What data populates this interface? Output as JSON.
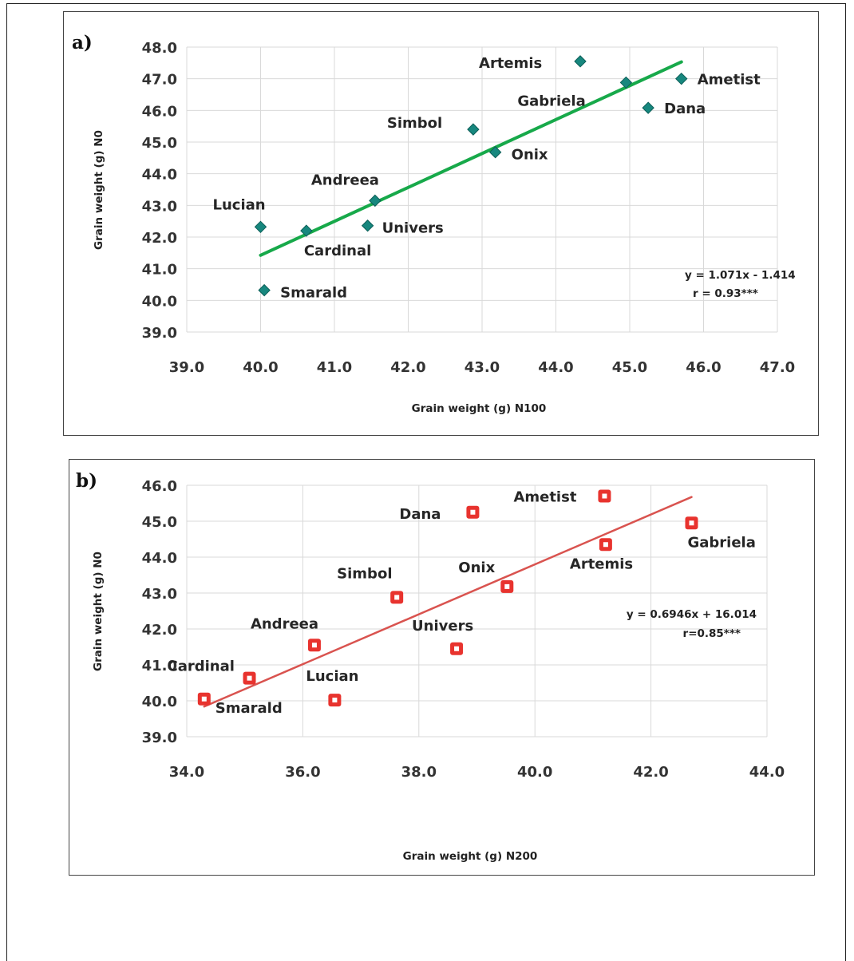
{
  "chart_data": [
    {
      "panel_label": "a)",
      "type": "scatter",
      "xlabel": "Grain weight (g) N100",
      "ylabel": "Grain weight (g) N0",
      "xlim": [
        39.0,
        47.0
      ],
      "ylim": [
        39.0,
        48.0
      ],
      "xticks": [
        "39.0",
        "40.0",
        "41.0",
        "42.0",
        "43.0",
        "44.0",
        "45.0",
        "46.0",
        "47.0"
      ],
      "yticks": [
        "39.0",
        "40.0",
        "41.0",
        "42.0",
        "43.0",
        "44.0",
        "45.0",
        "46.0",
        "47.0",
        "48.0"
      ],
      "grid": true,
      "marker": "diamond",
      "marker_color": "#17877e",
      "trend_color": "#17a94a",
      "trendline": {
        "x": [
          40.0,
          45.7
        ],
        "slope": 1.071,
        "intercept": -1.414
      },
      "equation": "y = 1.071x - 1.414",
      "r_text": "r = 0.93***",
      "points": [
        {
          "name": "Artemis",
          "x": 44.33,
          "y": 47.55
        },
        {
          "name": "Ametist",
          "x": 45.7,
          "y": 47.0
        },
        {
          "name": "Gabriela",
          "x": 44.95,
          "y": 46.88
        },
        {
          "name": "Dana",
          "x": 45.25,
          "y": 46.08
        },
        {
          "name": "Simbol",
          "x": 42.88,
          "y": 45.4
        },
        {
          "name": "Onix",
          "x": 43.18,
          "y": 44.68
        },
        {
          "name": "Andreea",
          "x": 41.55,
          "y": 43.15
        },
        {
          "name": "Lucian",
          "x": 40.0,
          "y": 42.32
        },
        {
          "name": "Cardinal",
          "x": 40.62,
          "y": 42.2
        },
        {
          "name": "Univers",
          "x": 41.45,
          "y": 42.36
        },
        {
          "name": "Smarald",
          "x": 40.05,
          "y": 40.32
        }
      ]
    },
    {
      "panel_label": "b)",
      "type": "scatter",
      "xlabel": "Grain weight (g) N200",
      "ylabel": "Grain weight (g) N0",
      "xlim": [
        34.0,
        44.0
      ],
      "ylim": [
        39.0,
        46.0
      ],
      "xticks": [
        "34.0",
        "36.0",
        "38.0",
        "40.0",
        "42.0",
        "44.0"
      ],
      "yticks": [
        "39.0",
        "40.0",
        "41.0",
        "42.0",
        "43.0",
        "44.0",
        "45.0",
        "46.0"
      ],
      "grid": true,
      "marker": "hollow-square",
      "marker_color": "#e8332e",
      "trend_color": "#d9534f",
      "trendline": {
        "x": [
          34.3,
          42.7
        ],
        "slope": 0.6946,
        "intercept": 16.014
      },
      "equation": "y = 0.6946x + 16.014",
      "r_text": "r=0.85***",
      "points": [
        {
          "name": "Ametist",
          "x": 41.2,
          "y": 45.7
        },
        {
          "name": "Dana",
          "x": 38.93,
          "y": 45.25
        },
        {
          "name": "Gabriela",
          "x": 42.7,
          "y": 44.95
        },
        {
          "name": "Artemis",
          "x": 41.22,
          "y": 44.35
        },
        {
          "name": "Onix",
          "x": 39.52,
          "y": 43.18
        },
        {
          "name": "Simbol",
          "x": 37.62,
          "y": 42.88
        },
        {
          "name": "Andreea",
          "x": 36.2,
          "y": 41.55
        },
        {
          "name": "Univers",
          "x": 38.65,
          "y": 41.45
        },
        {
          "name": "Cardinal",
          "x": 35.08,
          "y": 40.63
        },
        {
          "name": "Smarald",
          "x": 34.3,
          "y": 40.05
        },
        {
          "name": "Lucian",
          "x": 36.55,
          "y": 40.02
        }
      ]
    }
  ]
}
